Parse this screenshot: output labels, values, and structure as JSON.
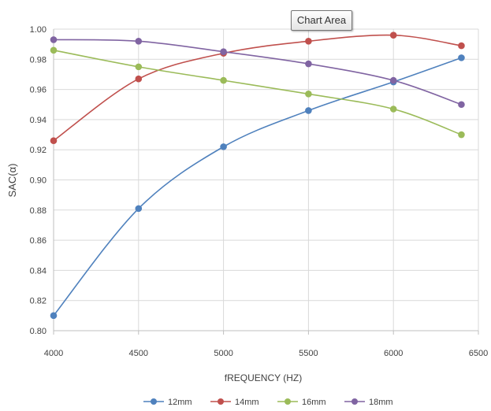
{
  "tooltip": {
    "text": "Chart Area"
  },
  "chart_data": {
    "type": "line",
    "xlabel": "fREQUENCY (HZ)",
    "ylabel": "SAC(α)",
    "xlim": [
      4000,
      6500
    ],
    "ylim": [
      0.8,
      1.0
    ],
    "x_ticks": [
      4000,
      4500,
      5000,
      5500,
      6000,
      6500
    ],
    "y_ticks": [
      0.8,
      0.82,
      0.84,
      0.86,
      0.88,
      0.9,
      0.92,
      0.94,
      0.96,
      0.98,
      1.0
    ],
    "x_tick_labels": [
      "4000",
      "4500",
      "5000",
      "5500",
      "6000",
      "6500"
    ],
    "y_tick_labels": [
      "0.80",
      "0.82",
      "0.84",
      "0.86",
      "0.88",
      "0.90",
      "0.92",
      "0.94",
      "0.96",
      "0.98",
      "1.00"
    ],
    "x": [
      4000,
      4500,
      5000,
      5500,
      6000,
      6400
    ],
    "grid": true,
    "smooth": true,
    "legend_position": "bottom",
    "series": [
      {
        "name": "12mm",
        "color": "#4f81bd",
        "values": [
          0.81,
          0.881,
          0.922,
          0.946,
          0.965,
          0.981
        ]
      },
      {
        "name": "14mm",
        "color": "#c0504d",
        "values": [
          0.926,
          0.967,
          0.984,
          0.992,
          0.996,
          0.989
        ]
      },
      {
        "name": "16mm",
        "color": "#9bbb59",
        "values": [
          0.986,
          0.975,
          0.966,
          0.957,
          0.947,
          0.93
        ]
      },
      {
        "name": "18mm",
        "color": "#8064a2",
        "values": [
          0.993,
          0.992,
          0.985,
          0.977,
          0.966,
          0.95
        ]
      }
    ]
  }
}
